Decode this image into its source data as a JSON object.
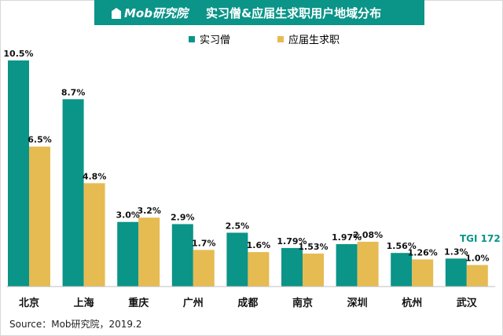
{
  "header": {
    "logo_text": "Mob研究院",
    "title": "实习僧&应届生求职用户地域分布"
  },
  "colors": {
    "series1": "#0b9488",
    "series2": "#e6bb52",
    "header_bg": "#0b9488"
  },
  "chart_data": {
    "type": "bar",
    "categories": [
      "北京",
      "上海",
      "重庆",
      "广州",
      "成都",
      "南京",
      "深圳",
      "杭州",
      "武汉"
    ],
    "series": [
      {
        "name": "实习僧",
        "values": [
          10.5,
          8.7,
          3.0,
          2.9,
          2.5,
          1.79,
          1.97,
          1.56,
          1.3
        ],
        "labels": [
          "10.5%",
          "8.7%",
          "3.0%",
          "2.9%",
          "2.5%",
          "1.79%",
          "1.97%",
          "1.56%",
          "1.3%"
        ]
      },
      {
        "name": "应届生求职",
        "values": [
          6.5,
          4.8,
          3.2,
          1.7,
          1.6,
          1.53,
          2.08,
          1.26,
          1.0
        ],
        "labels": [
          "6.5%",
          "4.8%",
          "3.2%",
          "1.7%",
          "1.6%",
          "1.53%",
          "2.08%",
          "1.26%",
          "1.0%"
        ]
      }
    ],
    "ylim": [
      0,
      11
    ],
    "legend_position": "top",
    "grid": false,
    "annotation": "TGI  172"
  },
  "footer": {
    "source": "Source：Mob研究院，2019.2"
  }
}
